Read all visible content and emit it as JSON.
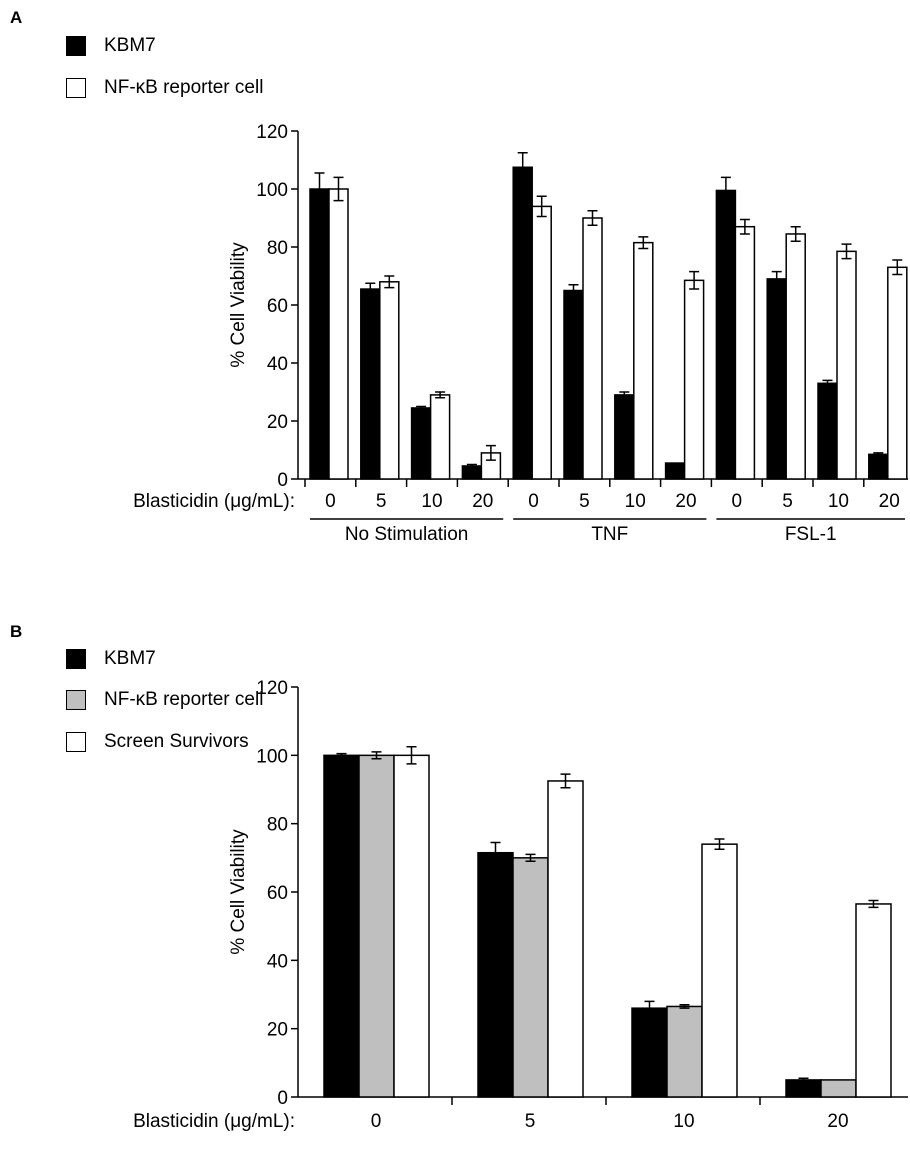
{
  "panels": {
    "a": {
      "letter": "A"
    },
    "b": {
      "letter": "B"
    }
  },
  "chart_data": [
    {
      "type": "bar",
      "panel": "A",
      "ylabel": "% Cell Viability",
      "xlabel": "Blasticidin (μg/mL):",
      "ylim": [
        0,
        120
      ],
      "yticks": [
        0,
        20,
        40,
        60,
        80,
        100,
        120
      ],
      "legend_placement": "top-left",
      "groups": [
        {
          "label": "No Stimulation",
          "categories": [
            "0",
            "5",
            "10",
            "20"
          ]
        },
        {
          "label": "TNF",
          "categories": [
            "0",
            "5",
            "10",
            "20"
          ]
        },
        {
          "label": "FSL-1",
          "categories": [
            "0",
            "5",
            "10",
            "20"
          ]
        }
      ],
      "series": [
        {
          "name": "KBM7",
          "color": "#000000",
          "values": [
            100,
            65.5,
            24.5,
            4.5,
            107.5,
            65,
            29,
            5.5,
            99.5,
            69,
            33,
            8.5
          ],
          "errors": [
            5.5,
            2,
            0.5,
            0.5,
            5,
            2,
            1,
            0,
            4.5,
            2.5,
            1,
            0.5
          ]
        },
        {
          "name": "NF-κB reporter cell",
          "color": "#ffffff",
          "values": [
            100,
            68,
            29,
            9,
            94,
            90,
            81.5,
            68.5,
            87,
            84.5,
            78.5,
            73
          ],
          "errors": [
            4,
            2,
            1,
            2.5,
            3.5,
            2.5,
            2,
            3,
            2.5,
            2.5,
            2.5,
            2.5
          ]
        }
      ]
    },
    {
      "type": "bar",
      "panel": "B",
      "ylabel": "% Cell Viability",
      "xlabel": "Blasticidin (μg/mL):",
      "ylim": [
        0,
        120
      ],
      "yticks": [
        0,
        20,
        40,
        60,
        80,
        100,
        120
      ],
      "legend_placement": "top-left",
      "categories": [
        "0",
        "5",
        "10",
        "20"
      ],
      "series": [
        {
          "name": "KBM7",
          "color": "#000000",
          "values": [
            100,
            71.5,
            26,
            5
          ],
          "errors": [
            0.5,
            3,
            2,
            0.5
          ]
        },
        {
          "name": "NF-κB reporter cell",
          "color": "#bfbfbf",
          "values": [
            100,
            70,
            26.5,
            5
          ],
          "errors": [
            1,
            1,
            0.5,
            0
          ]
        },
        {
          "name": "Screen Survivors",
          "color": "#ffffff",
          "values": [
            100,
            92.5,
            74,
            56.5
          ],
          "errors": [
            2.5,
            2,
            1.5,
            1
          ]
        }
      ]
    }
  ]
}
